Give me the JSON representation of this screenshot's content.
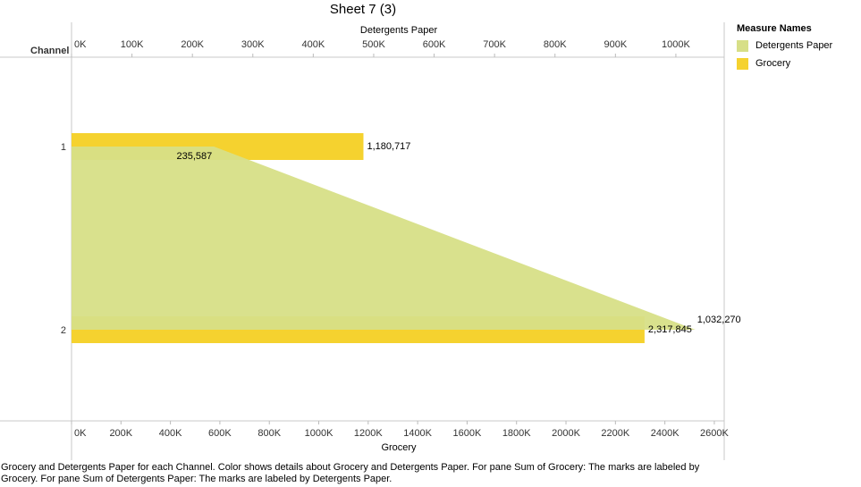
{
  "page": {
    "title": "Sheet 7 (3)"
  },
  "legend": {
    "title": "Measure Names",
    "items": [
      {
        "label": "Detergents Paper",
        "color": "#d7df87",
        "icon": "square-swatch"
      },
      {
        "label": "Grocery",
        "color": "#f5d22f",
        "icon": "square-swatch"
      }
    ]
  },
  "caption": "Grocery and Detergents Paper for each Channel.  Color shows details about Grocery and Detergents Paper.  For pane Sum of Grocery:  The marks are labeled by Grocery.  For pane Sum of Detergents Paper:  The marks are labeled by Detergents Paper.",
  "chart_data": {
    "type": "bar",
    "title": "Sheet 7 (3)",
    "row_header": "Channel",
    "categories": [
      "1",
      "2"
    ],
    "series": [
      {
        "name": "Grocery",
        "mark": "bar",
        "axis": "bottom",
        "values": [
          1180717,
          2317845
        ],
        "labels": [
          "1,180,717",
          "2,317,845"
        ],
        "color": "#f5d22f"
      },
      {
        "name": "Detergents Paper",
        "mark": "area",
        "axis": "top",
        "values": [
          235587,
          1032270
        ],
        "labels": [
          "235,587",
          "1,032,270"
        ],
        "color": "#d7df87"
      }
    ],
    "top_axis": {
      "label": "Detergents Paper",
      "range": [
        0,
        1080000
      ],
      "ticks": [
        0,
        100000,
        200000,
        300000,
        400000,
        500000,
        600000,
        700000,
        800000,
        900000,
        1000000
      ],
      "tick_labels": [
        "0K",
        "100K",
        "200K",
        "300K",
        "400K",
        "500K",
        "600K",
        "700K",
        "800K",
        "900K",
        "1000K"
      ]
    },
    "bottom_axis": {
      "label": "Grocery",
      "range": [
        0,
        2640000
      ],
      "ticks": [
        0,
        200000,
        400000,
        600000,
        800000,
        1000000,
        1200000,
        1400000,
        1600000,
        1800000,
        2000000,
        2200000,
        2400000,
        2600000
      ],
      "tick_labels": [
        "0K",
        "200K",
        "400K",
        "600K",
        "800K",
        "1000K",
        "1200K",
        "1400K",
        "1600K",
        "1800K",
        "2000K",
        "2200K",
        "2400K",
        "2600K"
      ]
    },
    "grid": false,
    "legend_position": "right"
  }
}
